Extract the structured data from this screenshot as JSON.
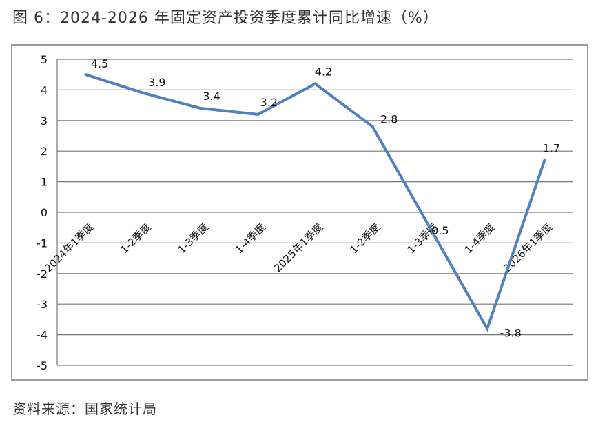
{
  "title": "图 6：2024-2026 年固定资产投资季度累计同比增速（%）",
  "source": "资料来源：国家统计局",
  "chart_data": {
    "type": "line",
    "categories": [
      "2024年1季度",
      "1-2季度",
      "1-3季度",
      "1-4季度",
      "2025年1季度",
      "1-2季度",
      "1-3季度",
      "1-4季度",
      "2026年1季度"
    ],
    "series": [
      {
        "values": [
          4.5,
          3.9,
          3.4,
          3.2,
          4.2,
          2.8,
          -0.5,
          -3.8,
          1.7
        ]
      }
    ],
    "data_labels": [
      "4.5",
      "3.9",
      "3.4",
      "3.2",
      "4.2",
      "2.8",
      "-0.5",
      "-3.8",
      "1.7"
    ],
    "ylim": [
      -5,
      5
    ],
    "yticks": [
      "5",
      "4",
      "3",
      "2",
      "1",
      "0",
      "-1",
      "-2",
      "-3",
      "-4",
      "-5"
    ],
    "grid": true,
    "line_color": "#4f81bd",
    "grid_color": "#777777"
  }
}
